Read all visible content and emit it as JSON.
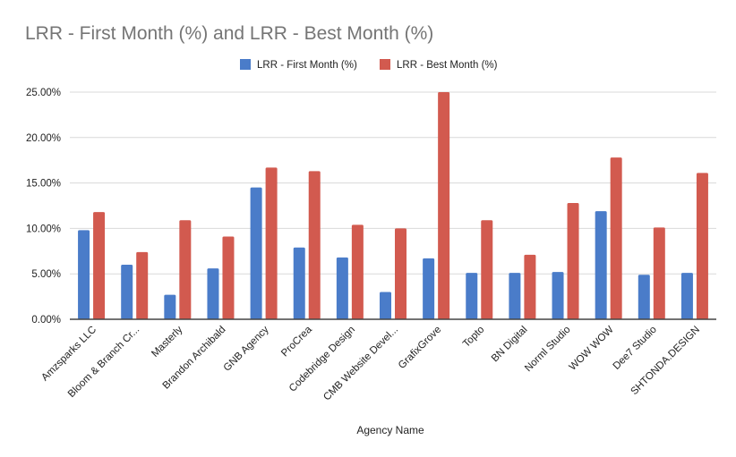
{
  "chart_data": {
    "type": "bar",
    "title": "LRR - First Month (%) and LRR - Best Month (%)",
    "xlabel": "Agency Name",
    "ylabel": "",
    "ylim": [
      0,
      25
    ],
    "y_ticks": [
      "0.00%",
      "5.00%",
      "10.00%",
      "15.00%",
      "20.00%",
      "25.00%"
    ],
    "y_tick_values": [
      0,
      5,
      10,
      15,
      20,
      25
    ],
    "grid": true,
    "legend_position": "top-center",
    "categories": [
      "Amzsparks LLC",
      "Bloom & Branch Cr...",
      "Masterly",
      "Brandon Archibald",
      "GNB Agency",
      "ProCrea",
      "Codebridge Design",
      "CMB Website Devel...",
      "GrafixGrove",
      "Topto",
      "BN Digital",
      "Norml Studio",
      "WOW WOW",
      "Dee7 Studio",
      "SHTONDA.DESIGN"
    ],
    "series": [
      {
        "name": "LRR - First Month (%)",
        "color": "#4a7cc9",
        "values": [
          9.8,
          6.0,
          2.7,
          5.6,
          14.5,
          7.9,
          6.8,
          3.0,
          6.7,
          5.1,
          5.1,
          5.2,
          11.9,
          4.9,
          5.1
        ]
      },
      {
        "name": "LRR - Best Month (%)",
        "color": "#d25a4f",
        "values": [
          11.8,
          7.4,
          10.9,
          9.1,
          16.7,
          16.3,
          10.4,
          10.0,
          25.0,
          10.9,
          7.1,
          12.8,
          17.8,
          10.1,
          16.1
        ]
      }
    ]
  }
}
